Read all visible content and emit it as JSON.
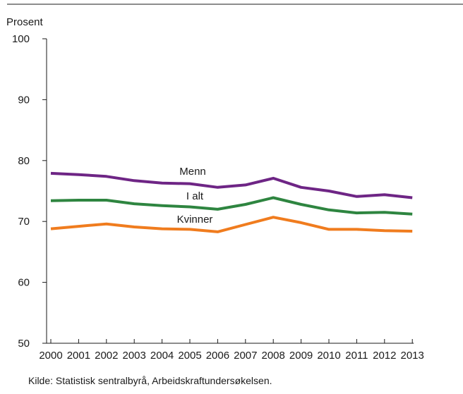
{
  "chart_data": {
    "type": "line",
    "ylabel": "Prosent",
    "ylim": [
      50,
      100
    ],
    "yticks": [
      50,
      60,
      70,
      80,
      90,
      100
    ],
    "categories": [
      "2000",
      "2001",
      "2002",
      "2003",
      "2004",
      "2005",
      "2006",
      "2007",
      "2008",
      "2009",
      "2010",
      "2011",
      "2012",
      "2013"
    ],
    "series": [
      {
        "name": "Menn",
        "color": "#6e2585",
        "values": [
          77.9,
          77.7,
          77.4,
          76.7,
          76.3,
          76.2,
          75.6,
          76.0,
          77.1,
          75.6,
          75.0,
          74.1,
          74.4,
          73.9
        ]
      },
      {
        "name": "I alt",
        "color": "#2e8540",
        "values": [
          73.4,
          73.5,
          73.5,
          72.9,
          72.6,
          72.4,
          72.0,
          72.8,
          73.9,
          72.8,
          71.9,
          71.4,
          71.5,
          71.2
        ]
      },
      {
        "name": "Kvinner",
        "color": "#f07c1e",
        "values": [
          68.8,
          69.2,
          69.6,
          69.1,
          68.8,
          68.7,
          68.3,
          69.5,
          70.7,
          69.8,
          68.7,
          68.7,
          68.5,
          68.4
        ]
      }
    ],
    "grid": false
  },
  "source": "Kilde: Statistisk sentralbyrå, Arbeidskraftundersøkelsen."
}
